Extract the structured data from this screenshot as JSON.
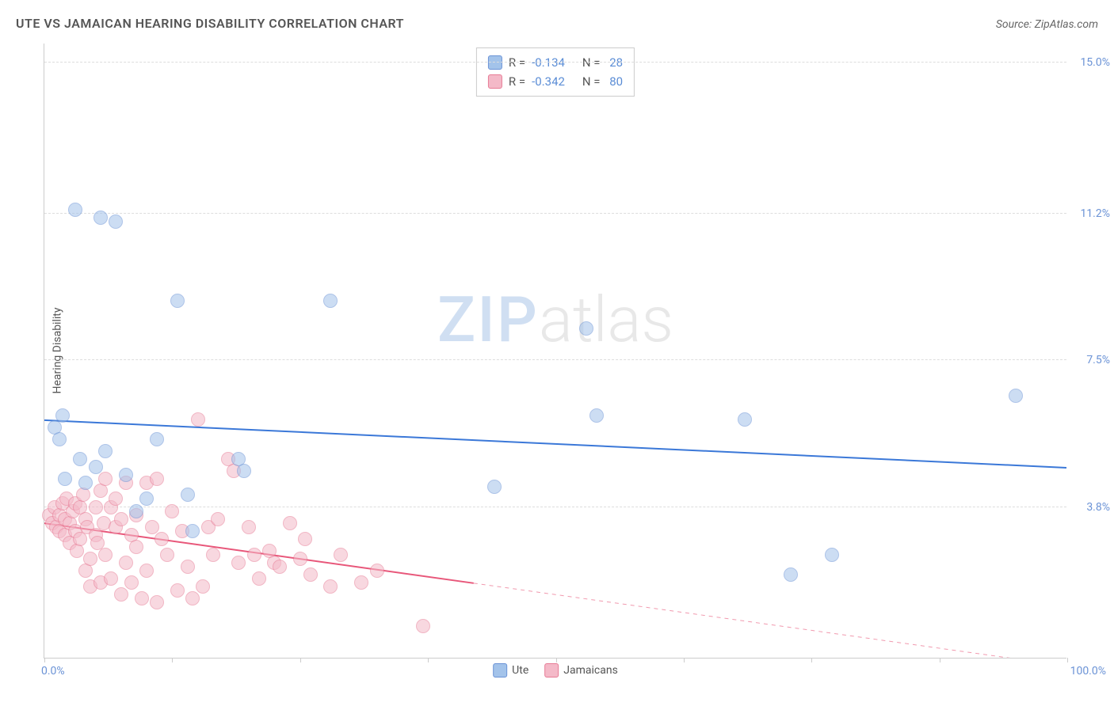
{
  "title": "UTE VS JAMAICAN HEARING DISABILITY CORRELATION CHART",
  "source": "Source: ZipAtlas.com",
  "watermark_part1": "ZIP",
  "watermark_part2": "atlas",
  "chart": {
    "type": "scatter",
    "ylabel": "Hearing Disability",
    "xlim": [
      0,
      100
    ],
    "ylim": [
      0,
      15.5
    ],
    "background_color": "#ffffff",
    "grid_color": "#dddddd",
    "axis_color": "#cccccc",
    "point_radius": 9,
    "point_opacity": 0.55,
    "point_stroke_opacity": 0.9,
    "xticks": [
      0,
      12.5,
      25,
      37.5,
      50,
      62.5,
      75,
      87.5,
      100
    ],
    "yticks": [
      {
        "v": 3.8,
        "label": "3.8%"
      },
      {
        "v": 7.5,
        "label": "7.5%"
      },
      {
        "v": 11.2,
        "label": "11.2%"
      },
      {
        "v": 15.0,
        "label": "15.0%"
      }
    ],
    "xtick_labels": {
      "min": "0.0%",
      "max": "100.0%"
    },
    "tick_label_color": "#6b93d6",
    "label_fontsize": 14,
    "series": [
      {
        "name": "Ute",
        "color": "#a3c3ea",
        "stroke": "#6b93d6",
        "trend_color": "#3b78d8",
        "trend_width": 2,
        "R": "-0.134",
        "N": "28",
        "trend": {
          "y_at_x0": 6.0,
          "y_at_x100": 4.8,
          "solid_until_x": 100
        },
        "points": [
          {
            "x": 1.0,
            "y": 5.8
          },
          {
            "x": 1.8,
            "y": 6.1
          },
          {
            "x": 1.5,
            "y": 5.5
          },
          {
            "x": 3.0,
            "y": 11.3
          },
          {
            "x": 5.5,
            "y": 11.1
          },
          {
            "x": 7.0,
            "y": 11.0
          },
          {
            "x": 3.5,
            "y": 5.0
          },
          {
            "x": 5.0,
            "y": 4.8
          },
          {
            "x": 6.0,
            "y": 5.2
          },
          {
            "x": 2.0,
            "y": 4.5
          },
          {
            "x": 4.0,
            "y": 4.4
          },
          {
            "x": 8.0,
            "y": 4.6
          },
          {
            "x": 10.0,
            "y": 4.0
          },
          {
            "x": 11.0,
            "y": 5.5
          },
          {
            "x": 14.0,
            "y": 4.1
          },
          {
            "x": 13.0,
            "y": 9.0
          },
          {
            "x": 19.0,
            "y": 5.0
          },
          {
            "x": 19.5,
            "y": 4.7
          },
          {
            "x": 14.5,
            "y": 3.2
          },
          {
            "x": 28.0,
            "y": 9.0
          },
          {
            "x": 44.0,
            "y": 4.3
          },
          {
            "x": 53.0,
            "y": 8.3
          },
          {
            "x": 54.0,
            "y": 6.1
          },
          {
            "x": 68.5,
            "y": 6.0
          },
          {
            "x": 73.0,
            "y": 2.1
          },
          {
            "x": 77.0,
            "y": 2.6
          },
          {
            "x": 95.0,
            "y": 6.6
          },
          {
            "x": 9.0,
            "y": 3.7
          }
        ]
      },
      {
        "name": "Jamaicans",
        "color": "#f4b9c8",
        "stroke": "#e77b95",
        "trend_color": "#e8577a",
        "trend_width": 2,
        "R": "-0.342",
        "N": "80",
        "trend": {
          "y_at_x0": 3.4,
          "y_at_x100": -0.2,
          "solid_until_x": 42
        },
        "points": [
          {
            "x": 0.5,
            "y": 3.6
          },
          {
            "x": 0.8,
            "y": 3.4
          },
          {
            "x": 1.0,
            "y": 3.8
          },
          {
            "x": 1.2,
            "y": 3.3
          },
          {
            "x": 1.5,
            "y": 3.6
          },
          {
            "x": 1.5,
            "y": 3.2
          },
          {
            "x": 1.8,
            "y": 3.9
          },
          {
            "x": 2.0,
            "y": 3.5
          },
          {
            "x": 2.0,
            "y": 3.1
          },
          {
            "x": 2.2,
            "y": 4.0
          },
          {
            "x": 2.5,
            "y": 3.4
          },
          {
            "x": 2.5,
            "y": 2.9
          },
          {
            "x": 2.8,
            "y": 3.7
          },
          {
            "x": 3.0,
            "y": 3.9
          },
          {
            "x": 3.0,
            "y": 3.2
          },
          {
            "x": 3.2,
            "y": 2.7
          },
          {
            "x": 3.5,
            "y": 3.8
          },
          {
            "x": 3.5,
            "y": 3.0
          },
          {
            "x": 3.8,
            "y": 4.1
          },
          {
            "x": 4.0,
            "y": 3.5
          },
          {
            "x": 4.0,
            "y": 2.2
          },
          {
            "x": 4.2,
            "y": 3.3
          },
          {
            "x": 4.5,
            "y": 2.5
          },
          {
            "x": 4.5,
            "y": 1.8
          },
          {
            "x": 5.0,
            "y": 3.8
          },
          {
            "x": 5.0,
            "y": 3.1
          },
          {
            "x": 5.2,
            "y": 2.9
          },
          {
            "x": 5.5,
            "y": 4.2
          },
          {
            "x": 5.5,
            "y": 1.9
          },
          {
            "x": 5.8,
            "y": 3.4
          },
          {
            "x": 6.0,
            "y": 4.5
          },
          {
            "x": 6.0,
            "y": 2.6
          },
          {
            "x": 6.5,
            "y": 3.8
          },
          {
            "x": 6.5,
            "y": 2.0
          },
          {
            "x": 7.0,
            "y": 3.3
          },
          {
            "x": 7.0,
            "y": 4.0
          },
          {
            "x": 7.5,
            "y": 1.6
          },
          {
            "x": 7.5,
            "y": 3.5
          },
          {
            "x": 8.0,
            "y": 2.4
          },
          {
            "x": 8.0,
            "y": 4.4
          },
          {
            "x": 8.5,
            "y": 3.1
          },
          {
            "x": 8.5,
            "y": 1.9
          },
          {
            "x": 9.0,
            "y": 3.6
          },
          {
            "x": 9.0,
            "y": 2.8
          },
          {
            "x": 9.5,
            "y": 1.5
          },
          {
            "x": 10.0,
            "y": 4.4
          },
          {
            "x": 10.0,
            "y": 2.2
          },
          {
            "x": 10.5,
            "y": 3.3
          },
          {
            "x": 11.0,
            "y": 4.5
          },
          {
            "x": 11.0,
            "y": 1.4
          },
          {
            "x": 11.5,
            "y": 3.0
          },
          {
            "x": 12.0,
            "y": 2.6
          },
          {
            "x": 12.5,
            "y": 3.7
          },
          {
            "x": 13.0,
            "y": 1.7
          },
          {
            "x": 13.5,
            "y": 3.2
          },
          {
            "x": 14.0,
            "y": 2.3
          },
          {
            "x": 14.5,
            "y": 1.5
          },
          {
            "x": 15.0,
            "y": 6.0
          },
          {
            "x": 15.5,
            "y": 1.8
          },
          {
            "x": 16.0,
            "y": 3.3
          },
          {
            "x": 16.5,
            "y": 2.6
          },
          {
            "x": 17.0,
            "y": 3.5
          },
          {
            "x": 18.0,
            "y": 5.0
          },
          {
            "x": 18.5,
            "y": 4.7
          },
          {
            "x": 19.0,
            "y": 2.4
          },
          {
            "x": 20.0,
            "y": 3.3
          },
          {
            "x": 20.5,
            "y": 2.6
          },
          {
            "x": 21.0,
            "y": 2.0
          },
          {
            "x": 22.0,
            "y": 2.7
          },
          {
            "x": 22.5,
            "y": 2.4
          },
          {
            "x": 23.0,
            "y": 2.3
          },
          {
            "x": 24.0,
            "y": 3.4
          },
          {
            "x": 25.0,
            "y": 2.5
          },
          {
            "x": 25.5,
            "y": 3.0
          },
          {
            "x": 26.0,
            "y": 2.1
          },
          {
            "x": 28.0,
            "y": 1.8
          },
          {
            "x": 29.0,
            "y": 2.6
          },
          {
            "x": 31.0,
            "y": 1.9
          },
          {
            "x": 32.5,
            "y": 2.2
          },
          {
            "x": 37.0,
            "y": 0.8
          }
        ]
      }
    ]
  }
}
